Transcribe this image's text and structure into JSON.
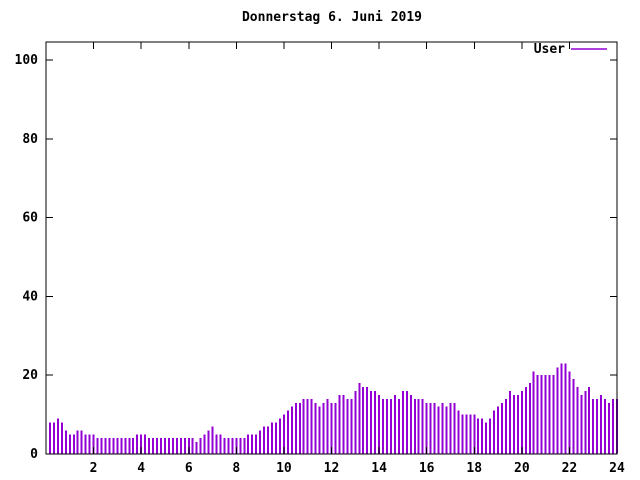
{
  "window": {
    "background_color": "#ffffff",
    "axis_color": "#000000",
    "text_color": "#000000"
  },
  "chart": {
    "title": "Donnerstag 6. Juni 2019",
    "legend": {
      "label": "User"
    }
  },
  "chart_data": {
    "type": "bar",
    "style": "impulses",
    "title": "Donnerstag 6. Juni 2019",
    "xlabel": "",
    "ylabel": "",
    "xlim": [
      0,
      24
    ],
    "ylim": [
      0,
      104.6
    ],
    "xticks": [
      2,
      4,
      6,
      8,
      10,
      12,
      14,
      16,
      18,
      20,
      22,
      24
    ],
    "yticks": [
      0,
      20,
      40,
      60,
      80,
      100
    ],
    "grid": false,
    "legend_position": "top-right",
    "x_unit": "hour of day",
    "sample_interval_minutes": 10,
    "series": [
      {
        "name": "User",
        "color": "#9400D3",
        "values": [
          8,
          8,
          9,
          8,
          6,
          5,
          5,
          6,
          6,
          5,
          5,
          5,
          4,
          4,
          4,
          4,
          4,
          4,
          4,
          4,
          4,
          4,
          5,
          5,
          5,
          4,
          4,
          4,
          4,
          4,
          4,
          4,
          4,
          4,
          4,
          4,
          4,
          3,
          4,
          5,
          6,
          7,
          5,
          5,
          4,
          4,
          4,
          4,
          4,
          4,
          5,
          5,
          5,
          6,
          7,
          7,
          8,
          8,
          9,
          10,
          11,
          12,
          13,
          13,
          14,
          14,
          14,
          13,
          12,
          13,
          14,
          13,
          13,
          15,
          15,
          14,
          14,
          16,
          18,
          17,
          17,
          16,
          16,
          15,
          14,
          14,
          14,
          15,
          14,
          16,
          16,
          15,
          14,
          14,
          14,
          13,
          13,
          13,
          12,
          13,
          12,
          13,
          13,
          11,
          10,
          10,
          10,
          10,
          9,
          9,
          8,
          9,
          11,
          12,
          13,
          14,
          16,
          15,
          15,
          16,
          17,
          18,
          21,
          20,
          20,
          20,
          20,
          20,
          22,
          23,
          23,
          21,
          19,
          17,
          15,
          16,
          17,
          14,
          14,
          15,
          14,
          13,
          14,
          14
        ]
      }
    ]
  }
}
